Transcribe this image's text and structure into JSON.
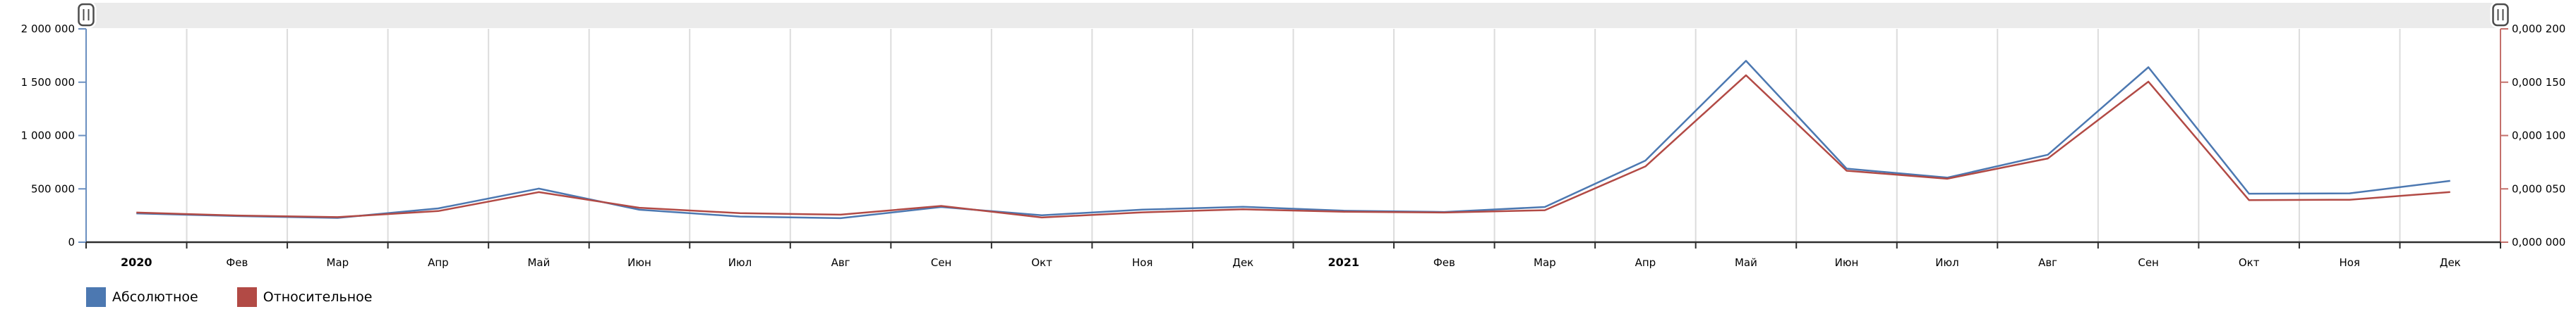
{
  "chart_data": {
    "type": "line",
    "title": "",
    "x_categories": [
      "2020",
      "Фев",
      "Мар",
      "Апр",
      "Май",
      "Июн",
      "Июл",
      "Авг",
      "Сен",
      "Окт",
      "Ноя",
      "Дек",
      "2021",
      "Фев",
      "Мар",
      "Апр",
      "Май",
      "Июн",
      "Июл",
      "Авг",
      "Сен",
      "Окт",
      "Ноя",
      "Дек"
    ],
    "bold_category_indexes": [
      0,
      12
    ],
    "grid": "vertical-only",
    "legend_position": "bottom-left",
    "y_axis_left": {
      "tick_labels": [
        "2 000 000",
        "1 500 000",
        "1 000 000",
        "500 000",
        "0"
      ],
      "min": 0,
      "max": 2000000,
      "line_color": "#6a8fc0",
      "tick_color": "#6a8fc0"
    },
    "y_axis_right": {
      "tick_labels": [
        "0,000 200",
        "0,000 150",
        "0,000 100",
        "0,000 050",
        "0,000 000"
      ],
      "min": 0,
      "max": 0.0002,
      "line_color": "#c4706b",
      "tick_color": "#c4706b"
    },
    "x_axis": {
      "line_color": "#2f2f2f",
      "label_color": "#000000"
    },
    "grid_color": "#dcdcdc",
    "series": [
      {
        "name": "Абсолютное",
        "color": "#4c78b1",
        "axis": "left",
        "values": [
          270000,
          245000,
          228000,
          317000,
          502000,
          304000,
          240000,
          225000,
          330000,
          252000,
          305000,
          332000,
          295000,
          283000,
          330000,
          765000,
          1700000,
          690000,
          605000,
          820000,
          1640000,
          455000,
          458000,
          575000
        ]
      },
      {
        "name": "Относительное",
        "color": "#b24a45",
        "axis": "right",
        "values": [
          2.78e-05,
          2.5e-05,
          2.35e-05,
          2.92e-05,
          4.69e-05,
          3.23e-05,
          2.72e-05,
          2.58e-05,
          3.4e-05,
          2.32e-05,
          2.8e-05,
          3.08e-05,
          2.85e-05,
          2.78e-05,
          3e-05,
          7.1e-05,
          0.0001565,
          6.7e-05,
          5.95e-05,
          7.85e-05,
          0.0001505,
          3.95e-05,
          3.98e-05,
          4.7e-05
        ]
      }
    ],
    "range_selector": {
      "track_color": "#ebebeb",
      "handle_fill": "#ffffff",
      "handle_border": "#4d4d4d",
      "start_handle_icon": "drag-handle-icon",
      "end_handle_icon": "drag-handle-icon",
      "handle_glyph": "∥"
    }
  },
  "legend": {
    "items": [
      {
        "label": "Абсолютное",
        "color": "#4c78b1"
      },
      {
        "label": "Относительное",
        "color": "#b24a45"
      }
    ]
  }
}
